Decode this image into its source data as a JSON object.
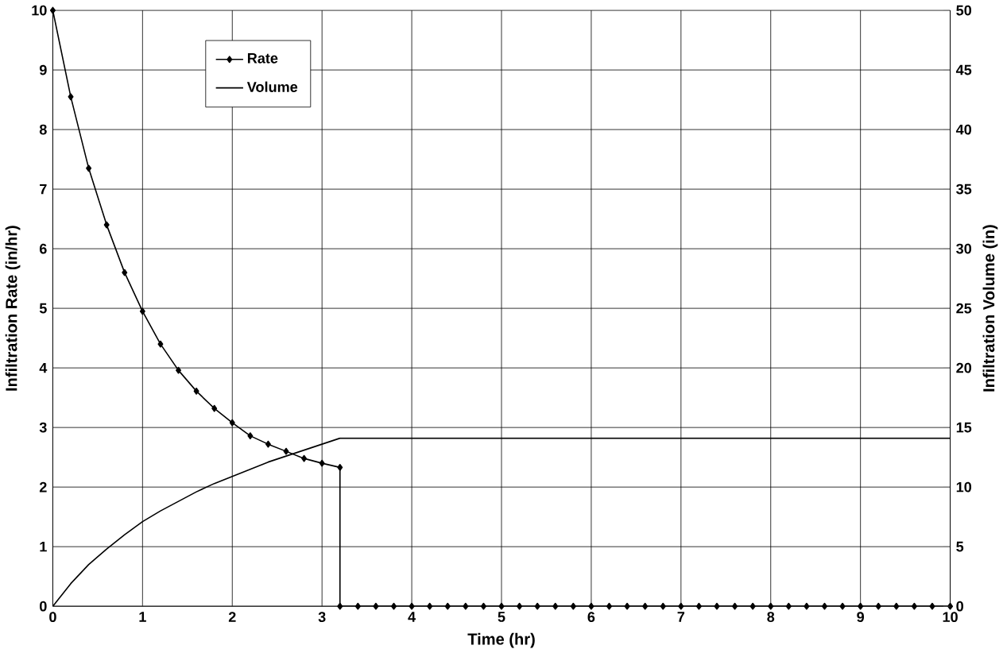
{
  "chart_data": {
    "type": "line",
    "xlabel": "Time (hr)",
    "ylabel": "Infiltration Rate (in/hr)",
    "y2label": "Infiltration Volume (in)",
    "xlim": [
      0,
      10
    ],
    "xticks": [
      0,
      1,
      2,
      3,
      4,
      5,
      6,
      7,
      8,
      9,
      10
    ],
    "ylim": [
      0,
      10
    ],
    "yticks": [
      0,
      1,
      2,
      3,
      4,
      5,
      6,
      7,
      8,
      9,
      10
    ],
    "y2lim": [
      0,
      50
    ],
    "y2ticks": [
      0,
      5,
      10,
      15,
      20,
      25,
      30,
      35,
      40,
      45,
      50
    ],
    "grid": true,
    "legend": "top left",
    "series": [
      {
        "name": "Rate",
        "color": "#000000",
        "marker": "diamond",
        "x": [
          0,
          0.2,
          0.4,
          0.6,
          0.8,
          1.0,
          1.2,
          1.4,
          1.6,
          1.8,
          2.0,
          2.2,
          2.4,
          2.6,
          2.8,
          3.0,
          3.2,
          3.2,
          3.4,
          3.6,
          3.8,
          4.0,
          4.2,
          4.4,
          4.6,
          4.8,
          5.0,
          5.2,
          5.4,
          5.6,
          5.8,
          6.0,
          6.2,
          6.4,
          6.6,
          6.8,
          7.0,
          7.2,
          7.4,
          7.6,
          7.8,
          8.0,
          8.2,
          8.4,
          8.6,
          8.8,
          9.0,
          9.2,
          9.4,
          9.6,
          9.8,
          10.0
        ],
        "values": [
          10,
          8.55,
          7.35,
          6.4,
          5.6,
          4.95,
          4.4,
          3.96,
          3.61,
          3.32,
          3.08,
          2.86,
          2.72,
          2.6,
          2.48,
          2.4,
          2.33,
          0,
          0,
          0,
          0,
          0,
          0,
          0,
          0,
          0,
          0,
          0,
          0,
          0,
          0,
          0,
          0,
          0,
          0,
          0,
          0,
          0,
          0,
          0,
          0,
          0,
          0,
          0,
          0,
          0,
          0,
          0,
          0,
          0,
          0,
          0
        ]
      },
      {
        "name": "Volume",
        "color": "#000000",
        "marker": "none",
        "axis": "y2",
        "x": [
          0,
          0.2,
          0.4,
          0.6,
          0.8,
          1.0,
          1.2,
          1.4,
          1.6,
          1.8,
          2.0,
          2.2,
          2.4,
          2.6,
          2.8,
          3.0,
          3.2,
          10
        ],
        "values": [
          0,
          1.9,
          3.5,
          4.8,
          6.0,
          7.1,
          8.0,
          8.8,
          9.6,
          10.3,
          10.9,
          11.5,
          12.1,
          12.6,
          13.1,
          13.6,
          14.1,
          14.1
        ]
      }
    ]
  }
}
